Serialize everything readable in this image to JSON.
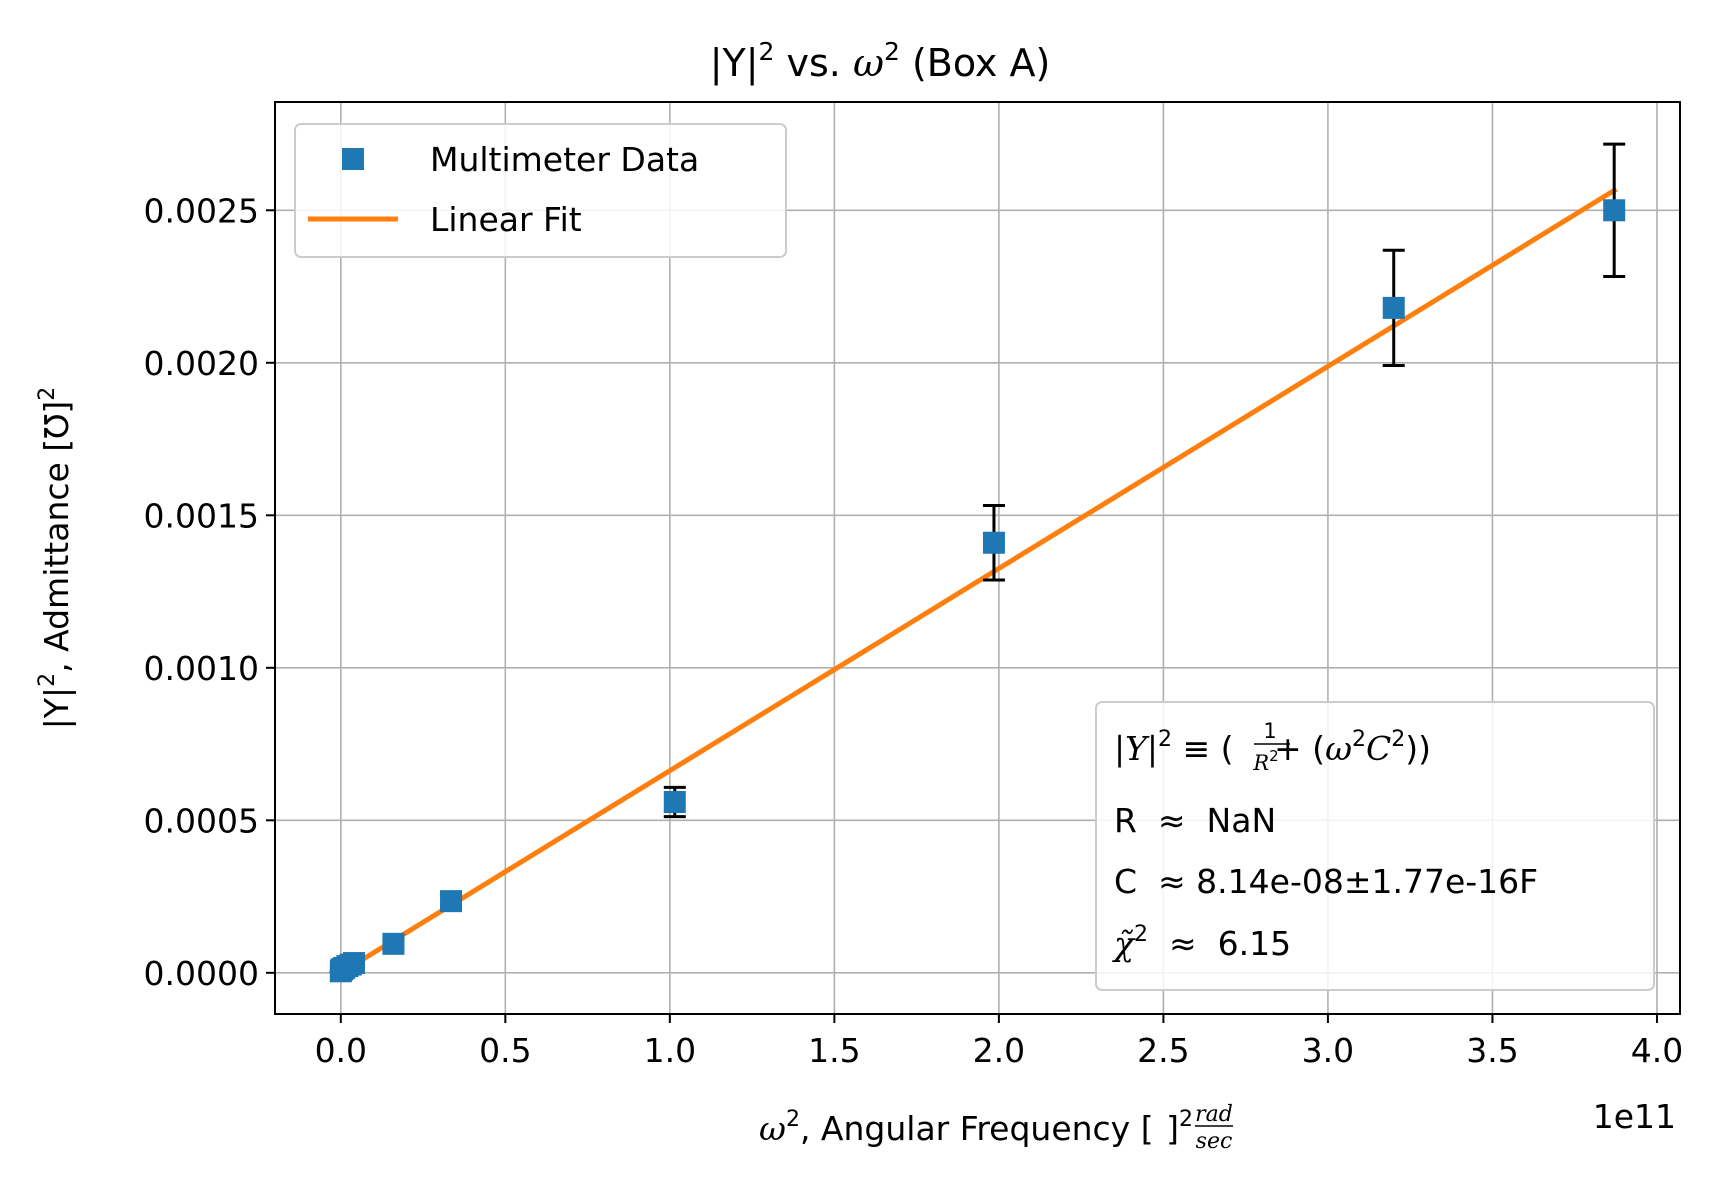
{
  "chart_data": {
    "type": "scatter",
    "title_parts": {
      "base": "|Y|",
      "sup": "2",
      "mid": " vs. ",
      "omega": "ω",
      "omega_sup": "2",
      "tail": " (Box A)"
    },
    "xlabel_parts": {
      "omega": "ω",
      "omega_sup": "2",
      "text": ", Angular Frequency [",
      "num": "rad",
      "den": "sec",
      "close": "]",
      "close_sup": "2"
    },
    "ylabel_parts": {
      "base": "|Y|",
      "sup": "2",
      "text": ", Admittance [℧]",
      "tail_sup": "2"
    },
    "x_offset_label": "1e11",
    "x_scale": 100000000000.0,
    "xlim": [
      -20000000000.0,
      407000000000.0
    ],
    "ylim": [
      -0.000135,
      0.002855
    ],
    "grid": true,
    "xticks": [
      0,
      50000000000.0,
      100000000000.0,
      150000000000.0,
      200000000000.0,
      250000000000.0,
      300000000000.0,
      350000000000.0,
      400000000000.0
    ],
    "xtick_labels": [
      "0.0",
      "0.5",
      "1.0",
      "1.5",
      "2.0",
      "2.5",
      "3.0",
      "3.5",
      "4.0"
    ],
    "yticks": [
      0,
      0.0005,
      0.001,
      0.0015,
      0.002,
      0.0025
    ],
    "ytick_labels": [
      "0.0000",
      "0.0005",
      "0.0010",
      "0.0015",
      "0.0020",
      "0.0025"
    ],
    "series": [
      {
        "name": "Multimeter Data",
        "color": "#1f77b4",
        "marker": "square",
        "x": [
          0.0,
          200000000.0,
          500000000.0,
          1000000000.0,
          2000000000.0,
          3000000000.0,
          4000000000.0,
          16000000000.0,
          33500000000.0,
          101500000000.0,
          198500000000.0,
          320000000000.0,
          387000000000.0
        ],
        "y": [
          5e-06,
          1e-05,
          1.2e-05,
          1.6e-05,
          2.2e-05,
          2.7e-05,
          3.2e-05,
          9.5e-05,
          0.000235,
          0.00056,
          0.00141,
          0.00218,
          0.0025
        ],
        "yerr": [
          1e-06,
          1e-06,
          1e-06,
          1e-06,
          2e-06,
          2e-06,
          3e-06,
          1.2e-05,
          1.8e-05,
          4.8e-05,
          0.000122,
          0.000189,
          0.000217
        ]
      },
      {
        "name": "Linear Fit",
        "color": "#ff7f0e",
        "type": "line",
        "x": [
          0.0,
          387000000000.0
        ],
        "y": [
          0.0,
          0.002565
        ]
      }
    ],
    "errorbar_color": "#000000",
    "legend": "top-left",
    "annotation": {
      "formula_parts": {
        "lhs": "|Y|",
        "lhs_sup": "2",
        "equiv": " ≡ (",
        "frac_num": "1",
        "frac_den": "R",
        "frac_den_sup": "2",
        "plus": " + (",
        "omega": "ω",
        "omega_sup": "2",
        "c": "C",
        "c_sup": "2",
        "close": "))"
      },
      "lines": [
        "R  ≈  NaN",
        "C  ≈ 8.14e-08±1.77e-16F"
      ],
      "chi_parts": {
        "symbol": "χ̃",
        "sup": "2",
        "value": "  ≈  6.15"
      },
      "placement": "bottom-right"
    }
  }
}
